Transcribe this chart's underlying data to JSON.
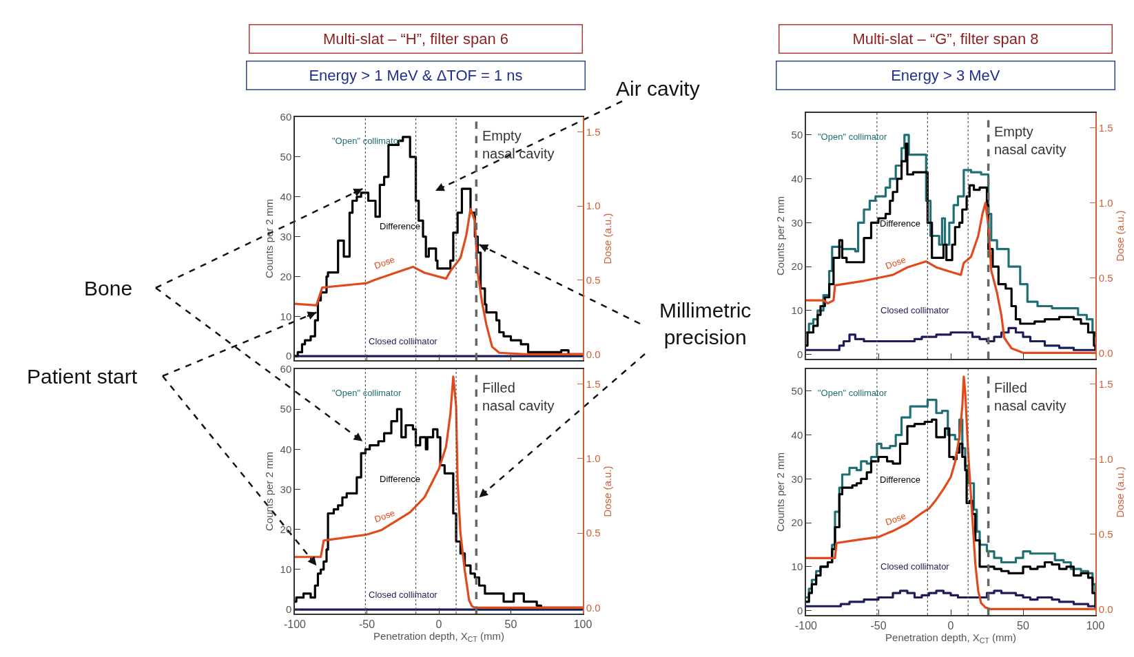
{
  "chart_data": [
    {
      "type": "step",
      "title": "Multi-slat – “H”, filter span 6",
      "subtitle": "Energy > 1 MeV & ΔTOF = 1 ns",
      "ylabel": "Counts per 2 mm",
      "y2label": "Dose (a.u.)",
      "tick_labels": "y",
      "xlim": [
        -100,
        100
      ],
      "xticks": [
        -100,
        -50,
        0,
        50,
        100
      ],
      "ylim": [
        -1,
        60
      ],
      "yticks": [
        0,
        10,
        20,
        30,
        40,
        50,
        60
      ],
      "y2lim": [
        -0.04,
        1.6
      ],
      "y2ticks": [
        {
          "value": 0,
          "label": "0.0"
        },
        {
          "value": 0.5,
          "label": "0.5"
        },
        {
          "value": 1,
          "label": "1.0"
        },
        {
          "value": 1.5,
          "label": "1.5"
        }
      ],
      "ref_lines": [
        {
          "axis": "x",
          "value": -51,
          "color": "#555555",
          "line_style": "dotted"
        },
        {
          "axis": "x",
          "value": -16,
          "color": "#555555",
          "line_style": "dotted"
        },
        {
          "axis": "x",
          "value": 12,
          "color": "#555555",
          "line_style": "dotted"
        },
        {
          "axis": "x",
          "value": 26,
          "color": "#666666",
          "line_style": "dashed"
        }
      ],
      "annotations": [
        "Empty\nnasal cavity",
        "\"Open\" collimator",
        {
          "text": "Bone",
          "x": -53,
          "y": 42
        },
        {
          "text": "Patient start",
          "x": -85,
          "y": 11
        },
        "Air cavity",
        {
          "text": "Millimetric\nprecision",
          "x": 28,
          "y": 28
        }
      ],
      "series": [
        {
          "name": "Closed collimator",
          "color": "#1c1c5a",
          "x": [
            -100,
            100
          ],
          "values": [
            0,
            0
          ]
        },
        {
          "name": "Difference",
          "color": "#000000",
          "x": [
            -100,
            -98,
            -95,
            -93,
            -89,
            -86,
            -84,
            -82,
            -78,
            -77,
            -70,
            -66,
            -62,
            -60,
            -57,
            -54,
            -49,
            -44,
            -41,
            -38,
            -35,
            -28,
            -25,
            -20,
            -16,
            -14,
            -11,
            -9,
            -7,
            -2,
            -1,
            8,
            10,
            13,
            16,
            22,
            25,
            27,
            29,
            32,
            33,
            40,
            42,
            45,
            50,
            57,
            62,
            74,
            85,
            90,
            100
          ],
          "values": [
            0,
            1,
            3,
            4,
            5,
            9,
            14,
            16,
            20,
            21,
            29,
            25,
            36,
            39,
            40,
            41,
            39,
            35,
            43,
            45,
            53,
            54,
            55,
            50,
            39,
            34,
            30,
            25,
            27,
            24,
            22,
            24,
            31,
            36,
            42,
            36,
            30,
            26,
            17,
            13,
            11,
            9,
            6,
            5,
            4,
            3,
            1,
            1,
            1.5,
            0.5,
            0.5
          ]
        },
        {
          "name": "Dose",
          "color": "#e04a1c",
          "type": "line",
          "axis": "y2",
          "x": [
            -100,
            -85,
            -81,
            -50,
            -45,
            -30,
            -18,
            -10,
            5,
            8,
            15,
            19,
            22,
            25,
            27,
            30,
            33,
            37,
            42,
            60,
            100
          ],
          "values": [
            0.34,
            0.33,
            0.45,
            0.48,
            0.5,
            0.55,
            0.59,
            0.55,
            0.51,
            0.56,
            0.65,
            0.8,
            0.98,
            0.9,
            0.55,
            0.35,
            0.2,
            0.05,
            0.01,
            0,
            0
          ]
        }
      ]
    },
    {
      "type": "step",
      "xlabel": "Penetration depth, X$_{CT}$ (mm)",
      "ylabel": "Counts per 2 mm",
      "y2label": "Dose (a.u.)",
      "xlim": [
        -100,
        100
      ],
      "xticks": [
        -100,
        -50,
        0,
        50,
        100
      ],
      "ylim": [
        -1,
        60
      ],
      "yticks": [
        0,
        10,
        20,
        30,
        40,
        50,
        60
      ],
      "y2lim": [
        -0.04,
        1.6
      ],
      "y2ticks": [
        {
          "value": 0,
          "label": "0.0"
        },
        {
          "value": 0.5,
          "label": "0.5"
        },
        {
          "value": 1,
          "label": "1.0"
        },
        {
          "value": 1.5,
          "label": "1.5"
        }
      ],
      "ref_lines": [
        {
          "axis": "x",
          "value": -51,
          "color": "#555555",
          "line_style": "dotted"
        },
        {
          "axis": "x",
          "value": -16,
          "color": "#555555",
          "line_style": "dotted"
        },
        {
          "axis": "x",
          "value": 12,
          "color": "#555555",
          "line_style": "dotted"
        },
        {
          "axis": "x",
          "value": 26,
          "color": "#666666",
          "line_style": "dashed"
        }
      ],
      "annotations": [
        "Filled\nnasal cavity",
        "\"Open\" collimator"
      ],
      "series": [
        {
          "name": "Closed collimator",
          "color": "#1c1c5a",
          "x": [
            -100,
            100
          ],
          "values": [
            0,
            0
          ]
        },
        {
          "name": "Difference",
          "color": "#000000",
          "x": [
            -100,
            -99,
            -94,
            -89,
            -86,
            -84,
            -82,
            -80,
            -78,
            -77,
            -73,
            -70,
            -67,
            -64,
            -57,
            -54,
            -51,
            -48,
            -42,
            -38,
            -33,
            -29,
            -26,
            -23,
            -18,
            -16,
            -13,
            -9,
            -8,
            -4,
            -1,
            1,
            4,
            10,
            12,
            15,
            18,
            22,
            25,
            28,
            32,
            42,
            45,
            50,
            52,
            56,
            59,
            68,
            71,
            100
          ],
          "values": [
            2,
            3,
            4,
            3,
            6,
            9,
            10,
            12,
            15,
            24,
            25,
            26,
            28,
            29,
            33,
            39,
            40,
            41,
            42,
            44,
            47,
            50,
            43,
            46,
            45,
            41,
            43,
            40,
            43,
            45,
            43,
            36,
            34,
            24,
            17,
            14,
            11,
            9,
            8,
            6,
            4,
            4,
            2,
            2,
            4,
            4,
            2,
            1,
            0.5,
            0.5
          ]
        },
        {
          "name": "Dose",
          "color": "#e04a1c",
          "type": "line",
          "axis": "y2",
          "x": [
            -100,
            -82,
            -80,
            -50,
            -40,
            -30,
            -20,
            -10,
            0,
            5,
            8,
            10,
            12,
            13,
            15,
            18,
            21,
            23,
            25,
            100
          ],
          "values": [
            0.34,
            0.34,
            0.45,
            0.49,
            0.52,
            0.58,
            0.64,
            0.74,
            0.93,
            1.08,
            1.3,
            1.55,
            1.35,
            0.85,
            0.5,
            0.25,
            0.05,
            0.01,
            0,
            0
          ]
        }
      ]
    },
    {
      "type": "step",
      "title": "Multi-slat – “G”, filter span 8",
      "subtitle": "Energy > 3 MeV",
      "ylabel": "Counts per 2 mm",
      "y2label": "Dose (a.u.)",
      "tick_labels": "y",
      "xlim": [
        -100,
        100
      ],
      "xticks": [
        -100,
        -50,
        0,
        50,
        100
      ],
      "ylim": [
        -1,
        55
      ],
      "yticks": [
        0,
        10,
        20,
        30,
        40,
        50
      ],
      "y2lim": [
        -0.04,
        1.6
      ],
      "y2ticks": [
        {
          "value": 0,
          "label": "0.0"
        },
        {
          "value": 0.5,
          "label": "0.5"
        },
        {
          "value": 1,
          "label": "1.0"
        },
        {
          "value": 1.5,
          "label": "1.5"
        }
      ],
      "ref_lines": [
        {
          "axis": "x",
          "value": -51,
          "color": "#555555",
          "line_style": "dotted"
        },
        {
          "axis": "x",
          "value": -16,
          "color": "#555555",
          "line_style": "dotted"
        },
        {
          "axis": "x",
          "value": 12,
          "color": "#555555",
          "line_style": "dotted"
        },
        {
          "axis": "x",
          "value": 26,
          "color": "#666666",
          "line_style": "dashed"
        }
      ],
      "annotations": [
        "Empty\nnasal cavity"
      ],
      "series": [
        {
          "name": "Closed collimator",
          "color": "#1c1c5a",
          "x": [
            -100,
            -80,
            -77,
            -74,
            -70,
            -66,
            -60,
            -25,
            -20,
            -10,
            0,
            15,
            20,
            25,
            30,
            35,
            40,
            45,
            50,
            55,
            65,
            75,
            85,
            100
          ],
          "values": [
            1,
            1,
            2,
            3,
            4.5,
            3.5,
            3,
            3.5,
            4,
            4.5,
            5,
            4,
            3.5,
            3,
            4,
            5,
            6,
            5,
            4,
            3,
            2,
            1.5,
            1,
            1
          ]
        },
        {
          "name": "\"Open\" collimator",
          "color": "#1f6f74",
          "x": [
            -100,
            -98,
            -95,
            -92,
            -88,
            -84,
            -82,
            -75,
            -66,
            -64,
            -60,
            -56,
            -52,
            -45,
            -42,
            -38,
            -34,
            -32,
            -29,
            -17,
            -14,
            -8,
            -6,
            -4,
            -1,
            2,
            5,
            9,
            14,
            21,
            26,
            28,
            32,
            40,
            48,
            53,
            60,
            70,
            80,
            88,
            94,
            98,
            100
          ],
          "values": [
            5,
            7,
            8,
            10,
            13.5,
            19,
            24.5,
            24,
            23.5,
            30,
            33,
            35,
            36,
            38,
            40,
            43,
            47,
            50,
            45.5,
            35,
            27,
            25,
            31,
            25,
            30,
            34,
            36,
            42,
            41.5,
            41,
            32,
            26,
            24,
            20,
            16,
            12,
            11,
            10.5,
            10.5,
            9,
            8,
            5,
            4
          ]
        },
        {
          "name": "Difference",
          "color": "#000000",
          "x": [
            -100,
            -99,
            -95,
            -92,
            -90,
            -87,
            -84,
            -81,
            -77,
            -75,
            -72,
            -65,
            -60,
            -55,
            -50,
            -45,
            -42,
            -40,
            -37,
            -34,
            -31,
            -30,
            -26,
            -18,
            -16,
            -13,
            -7,
            -5,
            -3,
            1,
            3,
            6,
            8,
            11,
            13,
            16,
            20,
            25,
            26,
            29,
            33,
            38,
            42,
            45,
            48,
            58,
            65,
            75,
            85,
            90,
            95,
            99,
            100
          ],
          "values": [
            2,
            5,
            6.5,
            9,
            11,
            13,
            16,
            22,
            26,
            22,
            21,
            21,
            26.5,
            30,
            31,
            32,
            35,
            37,
            40,
            44,
            48,
            41,
            41.5,
            41.5,
            30,
            22,
            22,
            25,
            21.5,
            25,
            29,
            30,
            33,
            36,
            38.5,
            37.5,
            38,
            34,
            24,
            20,
            16,
            15,
            11,
            8,
            7,
            7.5,
            8,
            8.5,
            8,
            7,
            5,
            2,
            1
          ]
        },
        {
          "name": "Dose",
          "color": "#e04a1c",
          "type": "line",
          "axis": "y2",
          "x": [
            -100,
            -88,
            -85,
            -81,
            -80,
            -60,
            -50,
            -40,
            -30,
            -17,
            -10,
            0,
            7,
            9,
            14,
            19,
            22,
            24,
            26,
            28,
            32,
            35,
            37,
            42,
            50,
            100
          ],
          "values": [
            0.35,
            0.35,
            0.33,
            0.35,
            0.45,
            0.48,
            0.5,
            0.52,
            0.57,
            0.61,
            0.57,
            0.54,
            0.52,
            0.6,
            0.64,
            0.78,
            0.93,
            1.0,
            0.85,
            0.55,
            0.4,
            0.25,
            0.1,
            0.03,
            0,
            0
          ]
        }
      ]
    },
    {
      "type": "step",
      "xlabel": "Penetration depth, X$_{CT}$ (mm)",
      "ylabel": "Counts per 2 mm",
      "y2label": "Dose (a.u.)",
      "xlim": [
        -100,
        100
      ],
      "xticks": [
        -100,
        -50,
        0,
        50,
        100
      ],
      "ylim": [
        -1,
        55
      ],
      "yticks": [
        0,
        10,
        20,
        30,
        40,
        50
      ],
      "y2lim": [
        -0.04,
        1.6
      ],
      "y2ticks": [
        {
          "value": 0,
          "label": "0.0"
        },
        {
          "value": 0.5,
          "label": "0.5"
        },
        {
          "value": 1,
          "label": "1.0"
        },
        {
          "value": 1.5,
          "label": "1.5"
        }
      ],
      "ref_lines": [
        {
          "axis": "x",
          "value": -51,
          "color": "#555555",
          "line_style": "dotted"
        },
        {
          "axis": "x",
          "value": -16,
          "color": "#555555",
          "line_style": "dotted"
        },
        {
          "axis": "x",
          "value": 12,
          "color": "#555555",
          "line_style": "dotted"
        },
        {
          "axis": "x",
          "value": 26,
          "color": "#666666",
          "line_style": "dashed"
        }
      ],
      "annotations": [
        "Filled\nnasal cavity"
      ],
      "series": [
        {
          "name": "Closed collimator",
          "color": "#1c1c5a",
          "x": [
            -100,
            -80,
            -76,
            -70,
            -60,
            -50,
            -40,
            -35,
            -30,
            -25,
            -20,
            -15,
            -10,
            -5,
            0,
            5,
            25,
            30,
            35,
            45,
            50,
            55,
            60,
            70,
            75,
            85,
            95,
            100
          ],
          "values": [
            1,
            1,
            1.5,
            2,
            2.5,
            3,
            4,
            4.5,
            4,
            3,
            3.5,
            4,
            4.5,
            4,
            3.5,
            3,
            4,
            4.5,
            4,
            3.5,
            3,
            2.5,
            3,
            2.5,
            2,
            1.5,
            1,
            0.5
          ]
        },
        {
          "name": "\"Open\" collimator",
          "color": "#1f6f74",
          "x": [
            -100,
            -98,
            -96,
            -93,
            -90,
            -85,
            -82,
            -80,
            -77,
            -75,
            -70,
            -65,
            -62,
            -58,
            -55,
            -51,
            -48,
            -42,
            -38,
            -34,
            -28,
            -16,
            -10,
            -6,
            -2,
            3,
            6,
            8,
            10,
            12,
            16,
            18,
            20,
            25,
            30,
            35,
            45,
            50,
            55,
            72,
            78,
            83,
            90,
            95,
            98,
            100
          ],
          "values": [
            3,
            5,
            7,
            9,
            10,
            11,
            15,
            22.5,
            28,
            31,
            32.5,
            32,
            34,
            33.5,
            35,
            38,
            37,
            37.5,
            40,
            44,
            46.5,
            48,
            45,
            45.5,
            40,
            39,
            43.5,
            37,
            33,
            29,
            23,
            18,
            15,
            13.5,
            12,
            11,
            12,
            13.5,
            13,
            11.5,
            11,
            9.5,
            9,
            8.5,
            6,
            4
          ]
        },
        {
          "name": "Difference",
          "color": "#000000",
          "x": [
            -100,
            -98,
            -96,
            -93,
            -90,
            -85,
            -82,
            -80,
            -77,
            -75,
            -68,
            -65,
            -62,
            -58,
            -55,
            -50,
            -44,
            -40,
            -35,
            -30,
            -25,
            -18,
            -13,
            -10,
            -4,
            -1,
            2,
            4,
            6,
            8,
            10,
            11,
            13,
            15,
            17,
            20,
            30,
            35,
            40,
            50,
            55,
            60,
            65,
            70,
            75,
            80,
            85,
            90,
            95,
            98,
            100
          ],
          "values": [
            2,
            4,
            6,
            8,
            10,
            11,
            14,
            19,
            26.5,
            28,
            28.5,
            29,
            30,
            31.5,
            34,
            35,
            34,
            33.5,
            38,
            42,
            42.5,
            43,
            43.5,
            39.5,
            41.5,
            35,
            34.5,
            36,
            38,
            35,
            32,
            24.5,
            25,
            22,
            16,
            10,
            9.5,
            9,
            8.5,
            10,
            9.5,
            10,
            11,
            10.5,
            9.5,
            10,
            8,
            8.5,
            7.5,
            4,
            1
          ]
        },
        {
          "name": "Dose",
          "color": "#e04a1c",
          "type": "line",
          "axis": "y2",
          "x": [
            -100,
            -80,
            -79,
            -65,
            -50,
            -40,
            -30,
            -20,
            -15,
            -10,
            -5,
            0,
            3,
            6,
            8,
            9,
            10,
            12,
            15,
            17,
            19,
            21,
            24,
            27,
            100
          ],
          "values": [
            0.34,
            0.34,
            0.44,
            0.46,
            0.48,
            0.52,
            0.57,
            0.64,
            0.67,
            0.73,
            0.8,
            0.88,
            0.98,
            1.15,
            1.35,
            1.55,
            1.45,
            1.05,
            0.6,
            0.3,
            0.12,
            0.04,
            0.01,
            0,
            0
          ]
        }
      ]
    }
  ]
}
